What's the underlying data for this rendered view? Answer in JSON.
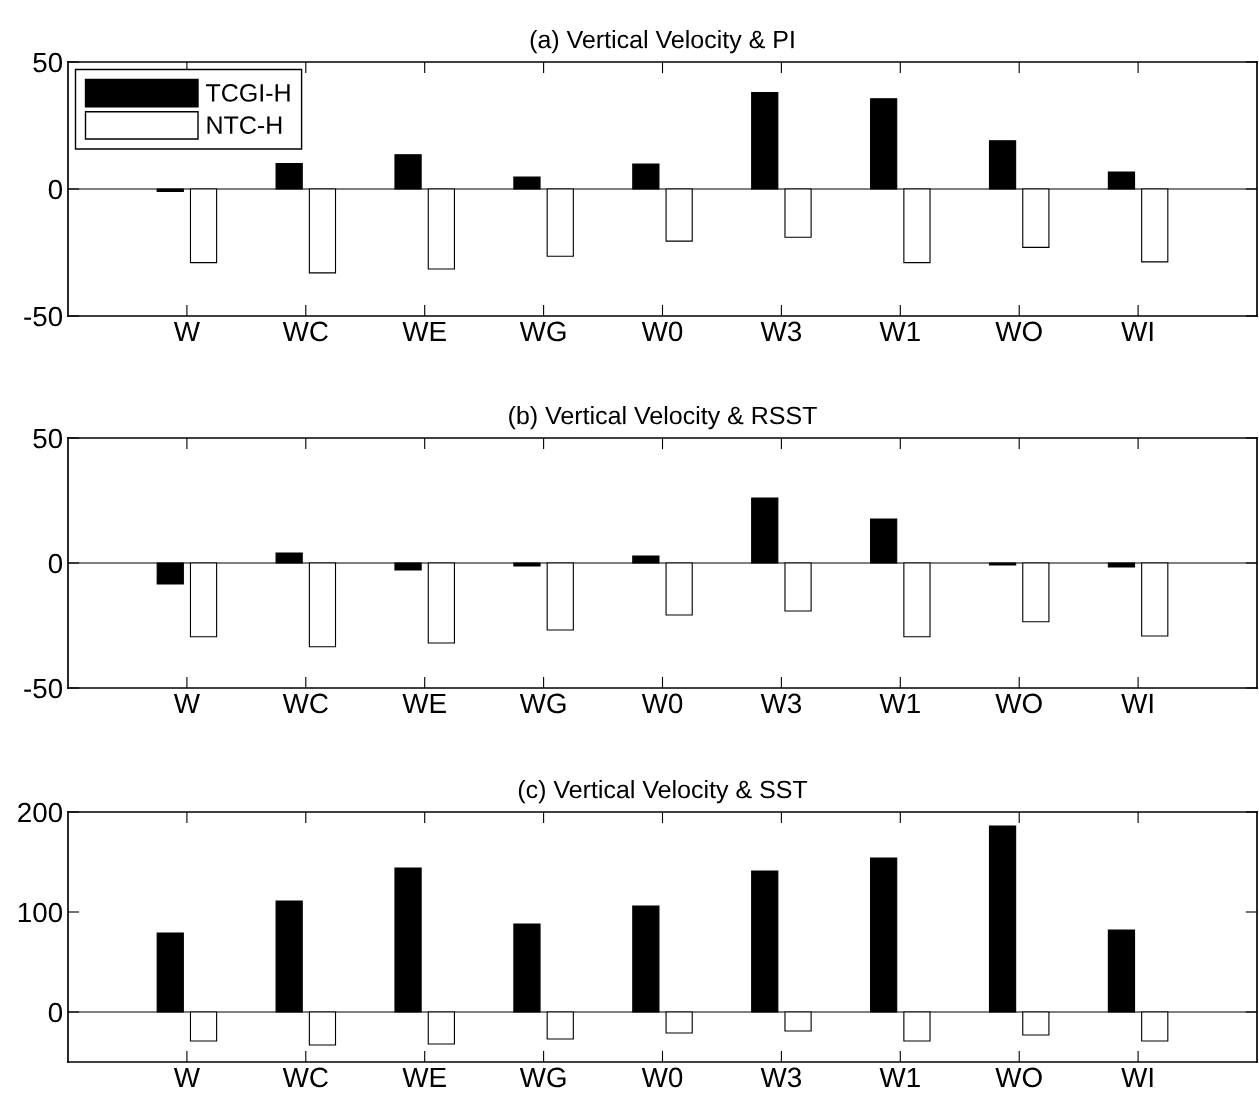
{
  "chart_data": [
    {
      "type": "bar",
      "title": "(a) Vertical Velocity & PI",
      "categories": [
        "W",
        "WC",
        "WE",
        "WG",
        "W0",
        "W3",
        "W1",
        "WO",
        "WI"
      ],
      "ylim": [
        -50,
        50
      ],
      "yticks": [
        -50,
        0,
        50
      ],
      "legend": "top left",
      "series": [
        {
          "name": "TCGI-H",
          "color": "#000000",
          "values": [
            -1,
            10,
            13.5,
            4.7,
            9.8,
            38,
            35.5,
            19,
            6.7
          ]
        },
        {
          "name": "NTC-H",
          "color": "#ffffff",
          "values": [
            -29,
            -33,
            -31.5,
            -26.5,
            -20.5,
            -19,
            -29,
            -23,
            -28.7
          ]
        }
      ]
    },
    {
      "type": "bar",
      "title": "(b) Vertical Velocity & RSST",
      "categories": [
        "W",
        "WC",
        "WE",
        "WG",
        "W0",
        "W3",
        "W1",
        "WO",
        "WI"
      ],
      "ylim": [
        -50,
        50
      ],
      "yticks": [
        -50,
        0,
        50
      ],
      "series": [
        {
          "color": "#000000",
          "values": [
            -8.4,
            4,
            -2.8,
            -1.2,
            2.8,
            26,
            17.6,
            -0.8,
            -1.6
          ]
        },
        {
          "color": "#ffffff",
          "values": [
            -29.5,
            -33.5,
            -32,
            -26.8,
            -20.8,
            -19.2,
            -29.5,
            -23.5,
            -29.2
          ]
        }
      ]
    },
    {
      "type": "bar",
      "title": "(c) Vertical Velocity & SST",
      "categories": [
        "W",
        "WC",
        "WE",
        "WG",
        "W0",
        "W3",
        "W1",
        "WO",
        "WI"
      ],
      "ylim": [
        -50,
        200
      ],
      "yticks": [
        0,
        100,
        200
      ],
      "series": [
        {
          "color": "#000000",
          "values": [
            79,
            111,
            144,
            88,
            106,
            141,
            154,
            186,
            82
          ]
        },
        {
          "color": "#ffffff",
          "values": [
            -29,
            -33,
            -32,
            -27,
            -21,
            -19,
            -29,
            -23,
            -29
          ]
        }
      ]
    }
  ]
}
